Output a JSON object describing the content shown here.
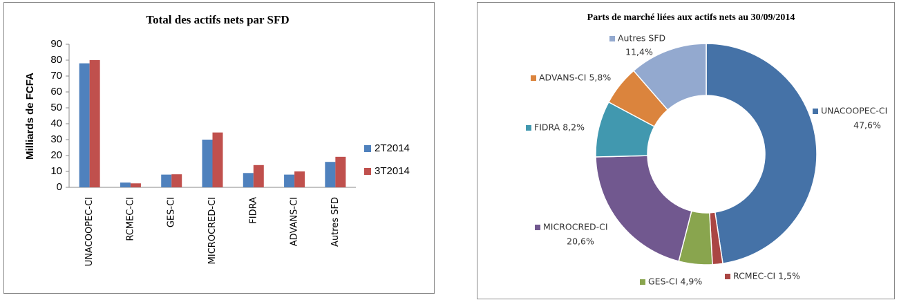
{
  "chart_data": [
    {
      "type": "bar",
      "title": "Total des actifs nets par SFD",
      "y_label": "Milliards de FCFA",
      "categories": [
        "UNACOOPEC-CI",
        "RCMEC-CI",
        "GES-CI",
        "MICROCRED-CI",
        "FIDRA",
        "ADVANS-CI",
        "Autres SFD"
      ],
      "series": [
        {
          "name": "2T2014",
          "color": "#4f81bd",
          "values": [
            78,
            3,
            8,
            30,
            9,
            8,
            16
          ]
        },
        {
          "name": "3T2014",
          "color": "#c0504d",
          "values": [
            80,
            2.5,
            8.2,
            34.5,
            14,
            10,
            19.2
          ]
        }
      ],
      "ylim": [
        0,
        90
      ],
      "yticks": [
        0,
        10,
        20,
        30,
        40,
        50,
        60,
        70,
        80,
        90
      ],
      "legend": "right"
    },
    {
      "type": "donut",
      "title": "Parts de marché liées aux actifs nets au 30/09/2014",
      "categories": [
        "UNACOOPEC-CI",
        "RCMEC-CI",
        "GES-CI",
        "MICROCRED-CI",
        "FIDRA",
        "ADVANS-CI",
        "Autres SFD"
      ],
      "values": [
        47.6,
        1.5,
        4.9,
        20.6,
        8.2,
        5.8,
        11.4
      ],
      "value_labels": [
        "47,6%",
        "1,5%",
        "4,9%",
        "20,6%",
        "8,2%",
        "5,8%",
        "11,4%"
      ],
      "colors": [
        "#4572a7",
        "#aa4643",
        "#89a54e",
        "#71588f",
        "#4198af",
        "#db843d",
        "#93a9cf"
      ]
    }
  ]
}
